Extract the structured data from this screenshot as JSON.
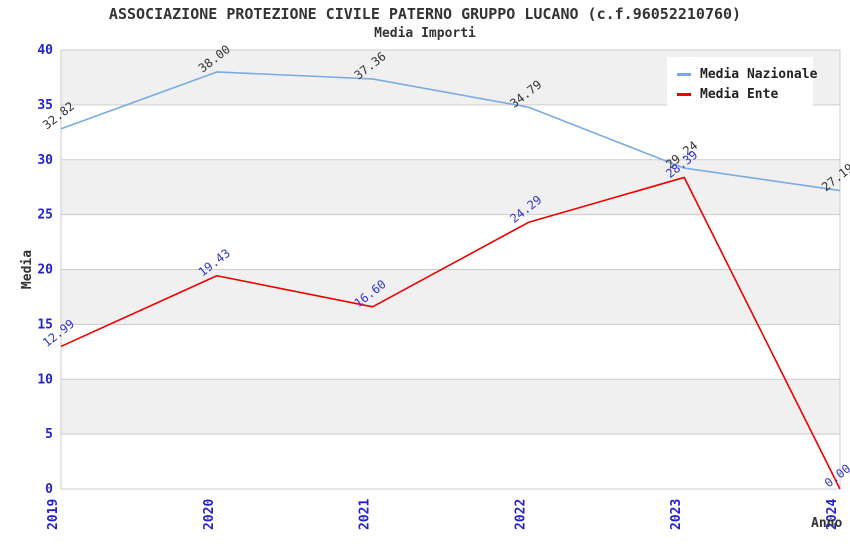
{
  "chart_data": {
    "type": "line",
    "title": "ASSOCIAZIONE PROTEZIONE CIVILE PATERNO GRUPPO LUCANO (c.f.96052210760)",
    "subtitle": "Media Importi",
    "xlabel": "Anno",
    "ylabel": "Media",
    "categories": [
      "2019",
      "2020",
      "2021",
      "2022",
      "2023",
      "2024"
    ],
    "series": [
      {
        "name": "Media Nazionale",
        "color": "#7AACE2",
        "label_color": "#333333",
        "values": [
          32.82,
          38.0,
          37.36,
          34.79,
          29.24,
          27.19
        ]
      },
      {
        "name": "Media Ente",
        "color": "#EE0000",
        "label_color": "#3333CC",
        "values": [
          12.99,
          19.43,
          16.6,
          24.29,
          28.39,
          0.0
        ]
      }
    ],
    "ylim": [
      0,
      40
    ],
    "ytick_step": 5,
    "grid": true,
    "legend_position": "top-right",
    "colors": {
      "tick_label": "#2222CC",
      "band_gray": "#F0F0F0",
      "band_white": "#FFFFFF",
      "grid_line": "#CCCCCC",
      "axis_title": "#333333"
    }
  }
}
